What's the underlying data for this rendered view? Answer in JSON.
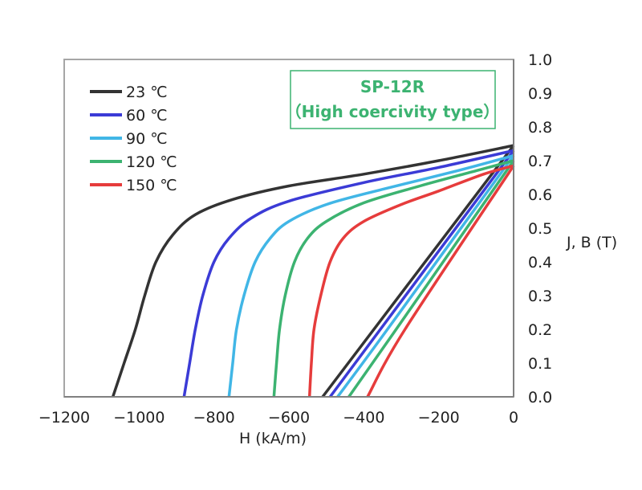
{
  "chart_data": {
    "type": "line",
    "title": "SP-12R",
    "subtitle": "（High coercivity type）",
    "xlabel": "H (kA/m)",
    "ylabel": "J, B (T)",
    "xlim": [
      -1200,
      0
    ],
    "ylim": [
      0.0,
      1.0
    ],
    "x_ticks": [
      "−1200",
      "−1000",
      "−800",
      "−600",
      "−400",
      "−200",
      "0"
    ],
    "y_ticks": [
      "0.0",
      "0.1",
      "0.2",
      "0.3",
      "0.4",
      "0.5",
      "0.6",
      "0.7",
      "0.8",
      "0.9",
      "1.0"
    ],
    "legend_position": "top-left",
    "grid": false,
    "title_box_color": "#3cb371",
    "series": [
      {
        "name": "23 ℃",
        "color": "#333333",
        "J": [
          [
            -1070,
            0.0
          ],
          [
            -1040,
            0.1
          ],
          [
            -1010,
            0.2
          ],
          [
            -985,
            0.3
          ],
          [
            -955,
            0.4
          ],
          [
            -910,
            0.48
          ],
          [
            -850,
            0.54
          ],
          [
            -750,
            0.585
          ],
          [
            -600,
            0.625
          ],
          [
            -400,
            0.66
          ],
          [
            -200,
            0.7
          ],
          [
            0,
            0.745
          ]
        ],
        "B": [
          [
            -510,
            0.0
          ],
          [
            0,
            0.745
          ]
        ]
      },
      {
        "name": "60 ℃",
        "color": "#3b3bd6",
        "J": [
          [
            -880,
            0.0
          ],
          [
            -865,
            0.1
          ],
          [
            -850,
            0.2
          ],
          [
            -830,
            0.3
          ],
          [
            -800,
            0.4
          ],
          [
            -760,
            0.47
          ],
          [
            -700,
            0.53
          ],
          [
            -600,
            0.58
          ],
          [
            -400,
            0.635
          ],
          [
            -200,
            0.68
          ],
          [
            0,
            0.73
          ]
        ],
        "B": [
          [
            -490,
            0.0
          ],
          [
            0,
            0.73
          ]
        ]
      },
      {
        "name": "90 ℃",
        "color": "#41b6e6",
        "J": [
          [
            -760,
            0.0
          ],
          [
            -750,
            0.1
          ],
          [
            -740,
            0.2
          ],
          [
            -720,
            0.3
          ],
          [
            -690,
            0.4
          ],
          [
            -650,
            0.47
          ],
          [
            -600,
            0.52
          ],
          [
            -500,
            0.57
          ],
          [
            -350,
            0.615
          ],
          [
            -150,
            0.67
          ],
          [
            0,
            0.715
          ]
        ],
        "B": [
          [
            -470,
            0.0
          ],
          [
            -350,
            0.18
          ],
          [
            0,
            0.715
          ]
        ]
      },
      {
        "name": "120 ℃",
        "color": "#3cb371",
        "J": [
          [
            -640,
            0.0
          ],
          [
            -633,
            0.1
          ],
          [
            -625,
            0.2
          ],
          [
            -610,
            0.3
          ],
          [
            -585,
            0.4
          ],
          [
            -550,
            0.47
          ],
          [
            -500,
            0.52
          ],
          [
            -400,
            0.575
          ],
          [
            -250,
            0.625
          ],
          [
            -100,
            0.67
          ],
          [
            0,
            0.7
          ]
        ],
        "B": [
          [
            -440,
            0.0
          ],
          [
            -320,
            0.19
          ],
          [
            0,
            0.7
          ]
        ]
      },
      {
        "name": "150 ℃",
        "color": "#e63c3c",
        "J": [
          [
            -545,
            0.0
          ],
          [
            -540,
            0.1
          ],
          [
            -533,
            0.2
          ],
          [
            -515,
            0.3
          ],
          [
            -490,
            0.4
          ],
          [
            -455,
            0.47
          ],
          [
            -400,
            0.52
          ],
          [
            -300,
            0.57
          ],
          [
            -200,
            0.61
          ],
          [
            -80,
            0.66
          ],
          [
            0,
            0.685
          ]
        ],
        "B": [
          [
            -390,
            0.0
          ],
          [
            -290,
            0.2
          ],
          [
            0,
            0.685
          ]
        ]
      }
    ]
  }
}
